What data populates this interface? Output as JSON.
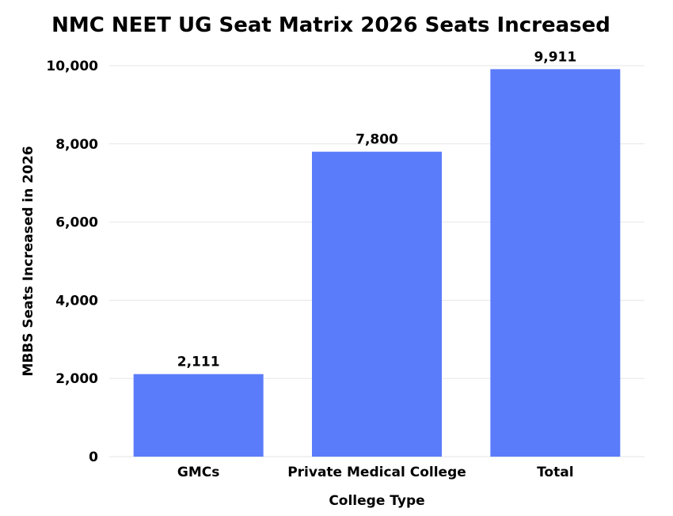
{
  "chart_data": {
    "type": "bar",
    "title": "NMC NEET UG Seat Matrix 2026 Seats Increased",
    "xlabel": "College Type",
    "ylabel": "MBBS Seats Increased in 2026",
    "categories": [
      "GMCs",
      "Private Medical College",
      "Total"
    ],
    "values": [
      2111,
      7800,
      9911
    ],
    "data_labels": [
      "2,111",
      "7,800",
      "9,911"
    ],
    "ylim": [
      0,
      10000
    ],
    "yticks": [
      0,
      2000,
      4000,
      6000,
      8000,
      10000
    ],
    "ytick_labels": [
      "0",
      "2,000",
      "4,000",
      "6,000",
      "8,000",
      "10,000"
    ],
    "bar_color": "#5b7cfa",
    "grid": true,
    "legend": "none"
  }
}
